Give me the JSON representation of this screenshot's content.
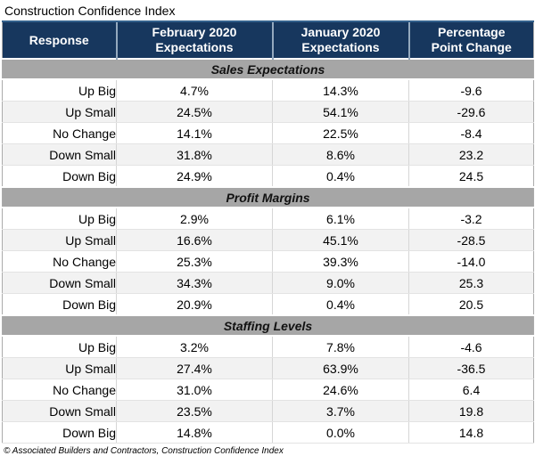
{
  "page": {
    "title": "Construction Confidence Index",
    "source": "© Associated Builders and Contractors, Construction Confidence Index"
  },
  "colors": {
    "header_bg": "#17375E",
    "header_text": "#FFFFFF",
    "header_divider": "#94A9BE",
    "header_top_accent": "#33608C",
    "section_bg": "#A6A6A6",
    "row_alt_bg": "#F2F2F2",
    "grid_line": "#D6D6D6"
  },
  "chart_data": {
    "type": "table",
    "title": "Construction Confidence Index",
    "columns": [
      "Response",
      "February 2020\nExpectations",
      "January 2020\nExpectations",
      "Percentage\nPoint Change"
    ],
    "sections": [
      {
        "name": "Sales Expectations",
        "rows": [
          [
            "Up Big",
            "4.7%",
            "14.3%",
            "-9.6"
          ],
          [
            "Up Small",
            "24.5%",
            "54.1%",
            "-29.6"
          ],
          [
            "No Change",
            "14.1%",
            "22.5%",
            "-8.4"
          ],
          [
            "Down Small",
            "31.8%",
            "8.6%",
            "23.2"
          ],
          [
            "Down Big",
            "24.9%",
            "0.4%",
            "24.5"
          ]
        ]
      },
      {
        "name": "Profit Margins",
        "rows": [
          [
            "Up Big",
            "2.9%",
            "6.1%",
            "-3.2"
          ],
          [
            "Up Small",
            "16.6%",
            "45.1%",
            "-28.5"
          ],
          [
            "No Change",
            "25.3%",
            "39.3%",
            "-14.0"
          ],
          [
            "Down Small",
            "34.3%",
            "9.0%",
            "25.3"
          ],
          [
            "Down Big",
            "20.9%",
            "0.4%",
            "20.5"
          ]
        ]
      },
      {
        "name": "Staffing Levels",
        "rows": [
          [
            "Up Big",
            "3.2%",
            "7.8%",
            "-4.6"
          ],
          [
            "Up Small",
            "27.4%",
            "63.9%",
            "-36.5"
          ],
          [
            "No Change",
            "31.0%",
            "24.6%",
            "6.4"
          ],
          [
            "Down Small",
            "23.5%",
            "3.7%",
            "19.8"
          ],
          [
            "Down Big",
            "14.8%",
            "0.0%",
            "14.8"
          ]
        ]
      }
    ],
    "source": "© Associated Builders and Contractors, Construction Confidence Index"
  }
}
